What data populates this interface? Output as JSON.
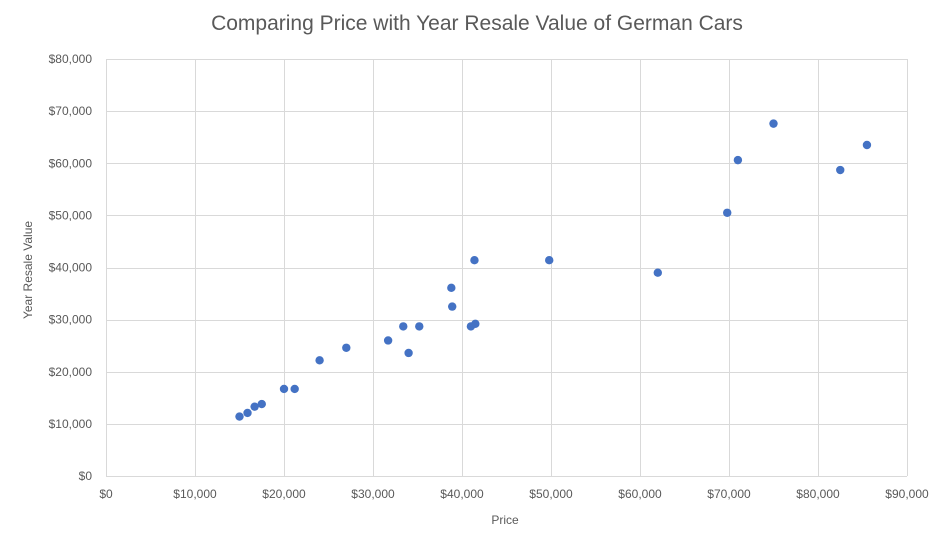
{
  "chart_data": {
    "type": "scatter",
    "title": "Comparing Price with Year Resale Value of German Cars",
    "xlabel": "Price",
    "ylabel": "Year Resale Value",
    "xlim": [
      0,
      90000
    ],
    "ylim": [
      0,
      80000
    ],
    "x_ticks": [
      0,
      10000,
      20000,
      30000,
      40000,
      50000,
      60000,
      70000,
      80000,
      90000
    ],
    "x_tick_labels": [
      "$0",
      "$10,000",
      "$20,000",
      "$30,000",
      "$40,000",
      "$50,000",
      "$60,000",
      "$70,000",
      "$80,000",
      "$90,000"
    ],
    "y_ticks": [
      0,
      10000,
      20000,
      30000,
      40000,
      50000,
      60000,
      70000,
      80000
    ],
    "y_tick_labels": [
      "$0",
      "$10,000",
      "$20,000",
      "$30,000",
      "$40,000",
      "$50,000",
      "$60,000",
      "$70,000",
      "$80,000"
    ],
    "grid": true,
    "marker_color": "#4472c4",
    "series": [
      {
        "name": "Year Resale Value",
        "x": [
          15000,
          15900,
          16700,
          17500,
          20000,
          21200,
          24000,
          27000,
          31700,
          33400,
          34000,
          35200,
          38800,
          38900,
          41000,
          41400,
          41500,
          49800,
          62000,
          69800,
          71000,
          75000,
          82500,
          85500
        ],
        "y": [
          11400,
          12100,
          13300,
          13800,
          16700,
          16700,
          22200,
          24600,
          26000,
          28700,
          23600,
          28700,
          36100,
          32500,
          28700,
          41400,
          29200,
          41400,
          39000,
          50500,
          60600,
          67600,
          58700,
          63500
        ]
      }
    ]
  }
}
